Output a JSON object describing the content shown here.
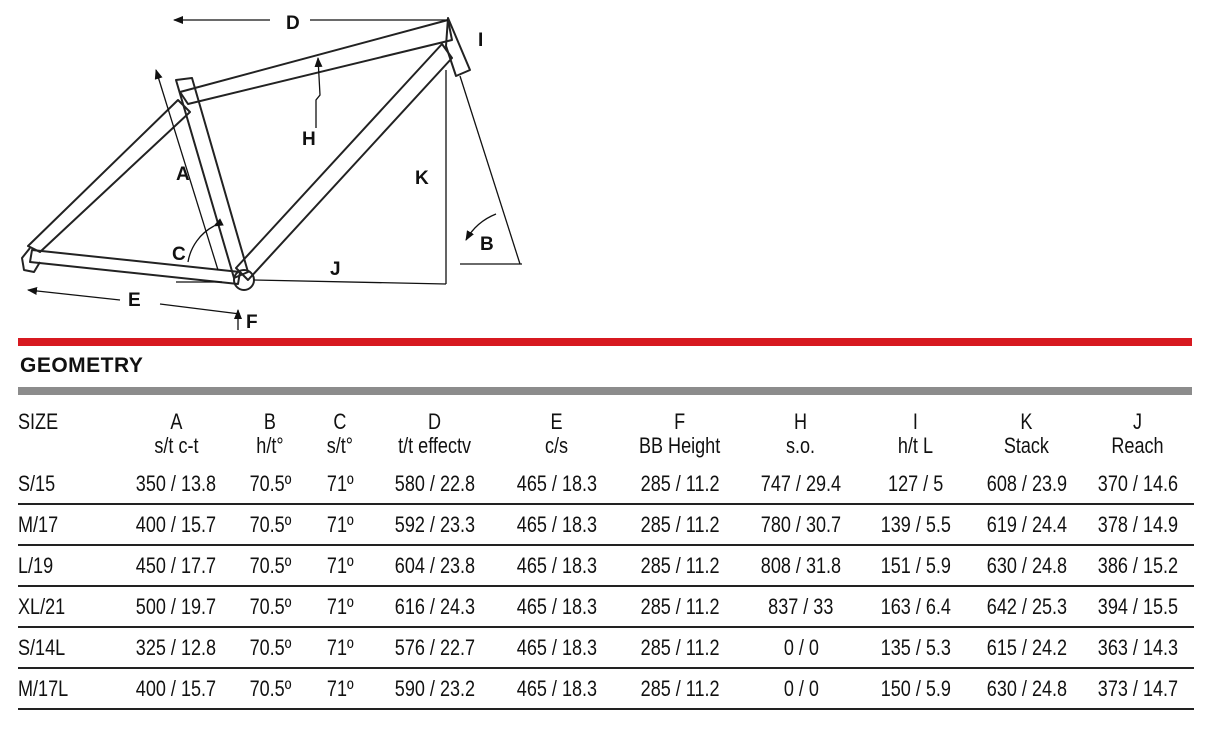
{
  "diagram": {
    "labels": {
      "A": "A",
      "B": "B",
      "C": "C",
      "D": "D",
      "E": "E",
      "F": "F",
      "H": "H",
      "I": "I",
      "J": "J",
      "K": "K"
    }
  },
  "section_title": "GEOMETRY",
  "colors": {
    "accent_red": "#d71920",
    "divider_gray": "#8c8c8c"
  },
  "table": {
    "headers": [
      {
        "top": "SIZE",
        "bottom": ""
      },
      {
        "top": "A",
        "bottom": "s/t c-t"
      },
      {
        "top": "B",
        "bottom": "h/t°"
      },
      {
        "top": "C",
        "bottom": "s/t°"
      },
      {
        "top": "D",
        "bottom": "t/t effectv"
      },
      {
        "top": "E",
        "bottom": "c/s"
      },
      {
        "top": "F",
        "bottom": "BB Height"
      },
      {
        "top": "H",
        "bottom": "s.o."
      },
      {
        "top": "I",
        "bottom": "h/t L"
      },
      {
        "top": "K",
        "bottom": "Stack"
      },
      {
        "top": "J",
        "bottom": "Reach"
      }
    ],
    "rows": [
      [
        "S/15",
        "350 / 13.8",
        "70.5º",
        "71º",
        "580 / 22.8",
        "465 / 18.3",
        "285 / 11.2",
        "747 / 29.4",
        "127 / 5",
        "608 / 23.9",
        "370 / 14.6"
      ],
      [
        "M/17",
        "400 / 15.7",
        "70.5º",
        "71º",
        "592 / 23.3",
        "465 / 18.3",
        "285 / 11.2",
        "780 / 30.7",
        "139 / 5.5",
        "619 / 24.4",
        "378 / 14.9"
      ],
      [
        "L/19",
        "450 / 17.7",
        "70.5º",
        "71º",
        "604 / 23.8",
        "465 / 18.3",
        "285 / 11.2",
        "808 / 31.8",
        "151 / 5.9",
        "630 / 24.8",
        "386 / 15.2"
      ],
      [
        "XL/21",
        "500 / 19.7",
        "70.5º",
        "71º",
        "616 / 24.3",
        "465 / 18.3",
        "285 / 11.2",
        "837 / 33",
        "163 / 6.4",
        "642 / 25.3",
        "394 / 15.5"
      ],
      [
        "S/14L",
        "325 / 12.8",
        "70.5º",
        "71º",
        "576 / 22.7",
        "465 / 18.3",
        "285 / 11.2",
        "0 / 0",
        "135 / 5.3",
        "615 / 24.2",
        "363 / 14.3"
      ],
      [
        "M/17L",
        "400 / 15.7",
        "70.5º",
        "71º",
        "590 / 23.2",
        "465 / 18.3",
        "285 / 11.2",
        "0 / 0",
        "150 / 5.9",
        "630 / 24.8",
        "373 / 14.7"
      ]
    ]
  }
}
